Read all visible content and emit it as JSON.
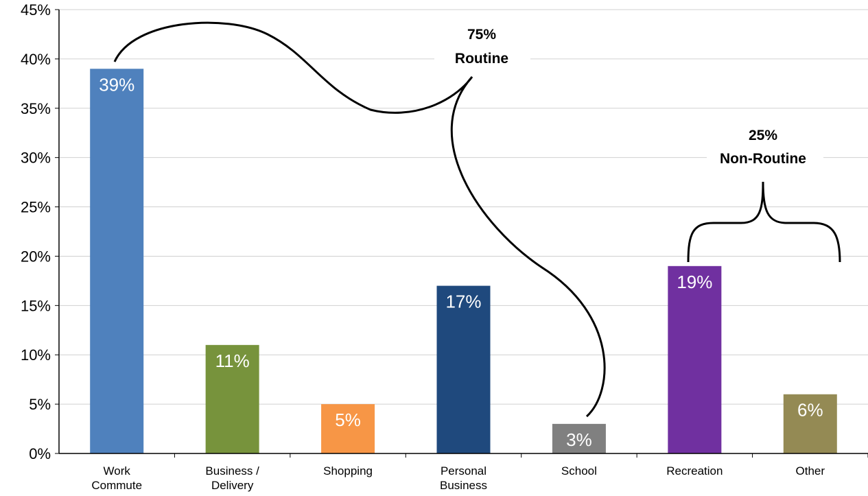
{
  "chart_data": {
    "type": "bar",
    "title": "",
    "xlabel": "",
    "ylabel": "",
    "ylim": [
      0,
      45
    ],
    "yticks": [
      "0%",
      "5%",
      "10%",
      "15%",
      "20%",
      "25%",
      "30%",
      "35%",
      "40%",
      "45%"
    ],
    "ytick_values": [
      0,
      5,
      10,
      15,
      20,
      25,
      30,
      35,
      40,
      45
    ],
    "grid": true,
    "legend": "none",
    "categories": [
      [
        "Work",
        "Commute"
      ],
      [
        "Business /",
        "Delivery"
      ],
      [
        "Shopping"
      ],
      [
        "Personal",
        "Business"
      ],
      [
        "School"
      ],
      [
        "Recreation"
      ],
      [
        "Other"
      ]
    ],
    "values": [
      39,
      11,
      5,
      17,
      3,
      19,
      6
    ],
    "data_labels": [
      "39%",
      "11%",
      "5%",
      "17%",
      "3%",
      "19%",
      "6%"
    ],
    "colors": [
      "#4f81bd",
      "#77933c",
      "#f79646",
      "#1f497d",
      "#808080",
      "#7030a0",
      "#948a54"
    ],
    "annotations": [
      {
        "lines": [
          "75%",
          "Routine"
        ],
        "span": "Work Commute – School"
      },
      {
        "lines": [
          "25%",
          "Non-Routine"
        ],
        "span": "Recreation – Other"
      }
    ]
  }
}
